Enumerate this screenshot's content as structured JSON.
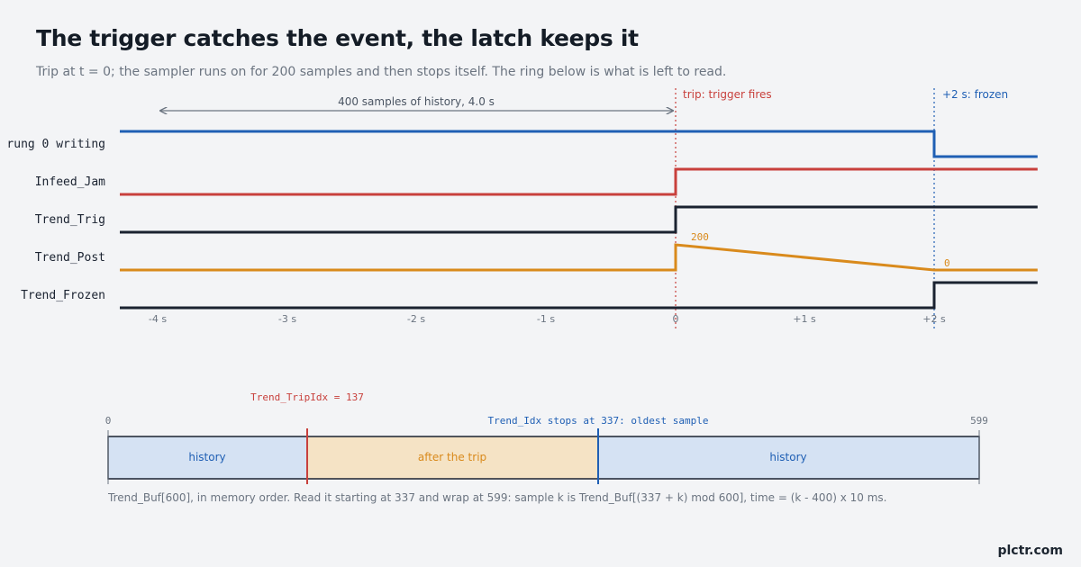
{
  "title": "The trigger catches the event, the latch keeps it",
  "subtitle": "Trip at t = 0; the sampler runs on for 200 samples and then stops itself. The ring below is what is left to read.",
  "brand": "plctr.com",
  "colors": {
    "blue": "#1f5fb4",
    "red": "#c8403c",
    "dark": "#1a2230",
    "orange": "#d98a1c",
    "gray": "#6b7480",
    "history_fill": "#d5e2f3",
    "after_fill": "#f5e3c5"
  },
  "timeline": {
    "history_label": "400 samples of history, 4.0 s",
    "trip_label": "trip: trigger fires",
    "frozen_label": "+2 s: frozen",
    "axis_ticks": [
      {
        "t": -4,
        "label": "-4 s"
      },
      {
        "t": -3,
        "label": "-3 s"
      },
      {
        "t": -2,
        "label": "-2 s"
      },
      {
        "t": -1,
        "label": "-1 s"
      },
      {
        "t": 0,
        "label": "0"
      },
      {
        "t": 1,
        "label": "+1 s"
      },
      {
        "t": 2,
        "label": "+2 s"
      }
    ],
    "signals": [
      {
        "name": "rung 0 writing",
        "color": "#1f5fb4",
        "kind": "digital",
        "steps": [
          [
            -4.3,
            1
          ],
          [
            2,
            0
          ],
          [
            2.8,
            0
          ]
        ]
      },
      {
        "name": "Infeed_Jam",
        "color": "#c8403c",
        "kind": "digital",
        "steps": [
          [
            -4.3,
            0
          ],
          [
            0,
            1
          ],
          [
            2.8,
            1
          ]
        ]
      },
      {
        "name": "Trend_Trig",
        "color": "#1a2230",
        "kind": "digital",
        "steps": [
          [
            -4.3,
            0
          ],
          [
            0,
            1
          ],
          [
            2.8,
            1
          ]
        ]
      },
      {
        "name": "Trend_Post",
        "color": "#d98a1c",
        "kind": "counter",
        "max": 200,
        "points": [
          [
            -4.3,
            0
          ],
          [
            0,
            0
          ],
          [
            0,
            200
          ],
          [
            2,
            0
          ],
          [
            2.8,
            0
          ]
        ],
        "labels": [
          {
            "t": 0,
            "text": "200"
          },
          {
            "t": 2,
            "text": "0"
          }
        ]
      },
      {
        "name": "Trend_Frozen",
        "color": "#1a2230",
        "kind": "digital",
        "steps": [
          [
            -4.3,
            0
          ],
          [
            2,
            1
          ],
          [
            2.8,
            1
          ]
        ]
      }
    ]
  },
  "buffer": {
    "size": 600,
    "start_label": "0",
    "end_label": "599",
    "trip_idx": 137,
    "trip_label": "Trend_TripIdx = 137",
    "stop_idx": 337,
    "stop_label": "Trend_Idx stops at 337: oldest sample",
    "segments": [
      {
        "from": 0,
        "to": 137,
        "label": "history",
        "kind": "history"
      },
      {
        "from": 137,
        "to": 337,
        "label": "after the trip",
        "kind": "after"
      },
      {
        "from": 337,
        "to": 599,
        "label": "history",
        "kind": "history"
      }
    ],
    "caption": "Trend_Buf[600], in memory order. Read it starting at 337 and wrap at 599: sample k is Trend_Buf[(337 + k) mod 600], time = (k - 400) x 10 ms."
  }
}
